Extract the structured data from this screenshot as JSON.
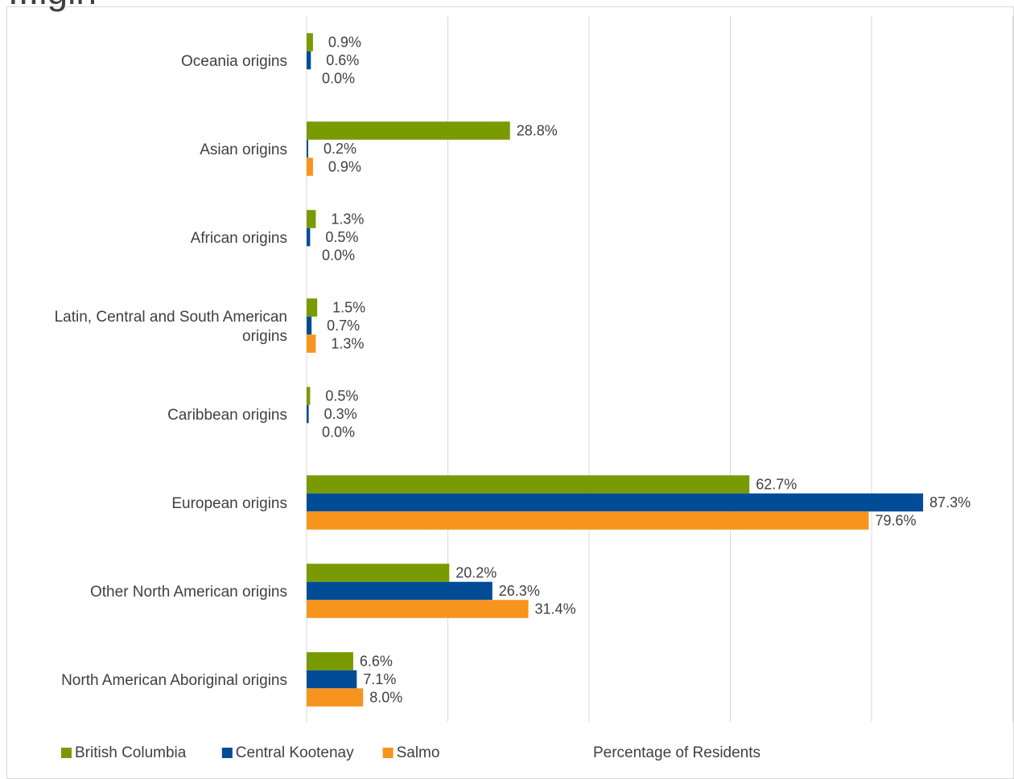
{
  "title_fragment": "...igin",
  "chart_data": {
    "type": "bar",
    "orientation": "horizontal",
    "title": "",
    "xlabel": "Percentage of Residents",
    "ylabel": "",
    "xlim": [
      0,
      100
    ],
    "grid": true,
    "legend_position": "bottom-left",
    "categories": [
      "Oceania origins",
      "Asian origins",
      "African origins",
      "Latin, Central and South American origins",
      "Caribbean origins",
      "European origins",
      "Other North American origins",
      "North American Aboriginal origins"
    ],
    "series": [
      {
        "name": "British Columbia",
        "color": "#7a9a01",
        "values": [
          0.9,
          28.8,
          1.3,
          1.5,
          0.5,
          62.7,
          20.2,
          6.6
        ],
        "labels": [
          "0.9%",
          "28.8%",
          "1.3%",
          "1.5%",
          "0.5%",
          "62.7%",
          "20.2%",
          "6.6%"
        ]
      },
      {
        "name": "Central Kootenay",
        "color": "#004c97",
        "values": [
          0.6,
          0.2,
          0.5,
          0.7,
          0.3,
          87.3,
          26.3,
          7.1
        ],
        "labels": [
          "0.6%",
          "0.2%",
          "0.5%",
          "0.7%",
          "0.3%",
          "87.3%",
          "26.3%",
          "7.1%"
        ]
      },
      {
        "name": "Salmo",
        "color": "#f7941d",
        "values": [
          0.0,
          0.9,
          0.0,
          1.3,
          0.0,
          79.6,
          31.4,
          8.0
        ],
        "labels": [
          "0.0%",
          "0.9%",
          "0.0%",
          "1.3%",
          "0.0%",
          "79.6%",
          "31.4%",
          "8.0%"
        ]
      }
    ]
  }
}
